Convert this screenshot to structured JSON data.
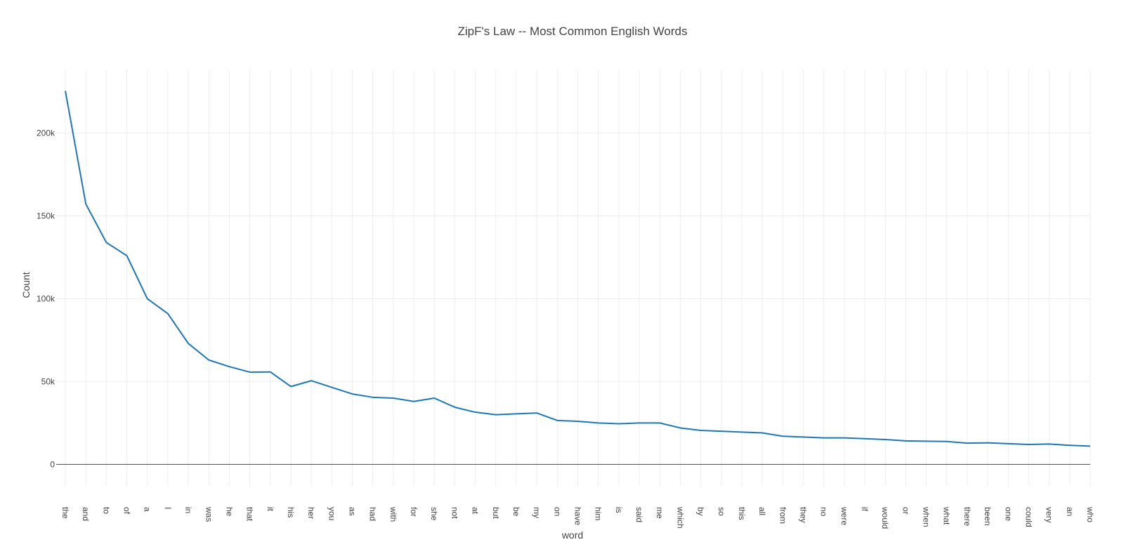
{
  "chart_data": {
    "type": "line",
    "title": "ZipF's Law -- Most Common English Words",
    "xlabel": "word",
    "ylabel": "Count",
    "ylim": [
      -13000,
      238000
    ],
    "yticks": [
      0,
      50000,
      100000,
      150000,
      200000
    ],
    "ytick_labels": [
      "0",
      "50k",
      "100k",
      "150k",
      "200k"
    ],
    "grid": true,
    "line_color": "#1f77b4",
    "grid_color": "#eeeeee",
    "zeroline_color": "#444444",
    "categories": [
      "the",
      "and",
      "to",
      "of",
      "a",
      "I",
      "in",
      "was",
      "he",
      "that",
      "it",
      "his",
      "her",
      "you",
      "as",
      "had",
      "with",
      "for",
      "she",
      "not",
      "at",
      "but",
      "be",
      "my",
      "on",
      "have",
      "him",
      "is",
      "said",
      "me",
      "which",
      "by",
      "so",
      "this",
      "all",
      "from",
      "they",
      "no",
      "were",
      "if",
      "would",
      "or",
      "when",
      "what",
      "there",
      "been",
      "one",
      "could",
      "very",
      "an",
      "who"
    ],
    "series": [
      {
        "values": [
          225500,
          157200,
          134000,
          126000,
          100000,
          91000,
          73000,
          63000,
          59000,
          55700,
          55800,
          47000,
          50500,
          46500,
          42500,
          40500,
          40000,
          38000,
          40000,
          34500,
          31500,
          30000,
          30500,
          31000,
          26500,
          26000,
          25000,
          24500,
          25000,
          25000,
          22000,
          20500,
          20000,
          19500,
          19000,
          17000,
          16500,
          16000,
          16000,
          15500,
          15000,
          14200,
          14000,
          13800,
          12800,
          13000,
          12500,
          12000,
          12300,
          11500,
          11000
        ]
      }
    ]
  }
}
